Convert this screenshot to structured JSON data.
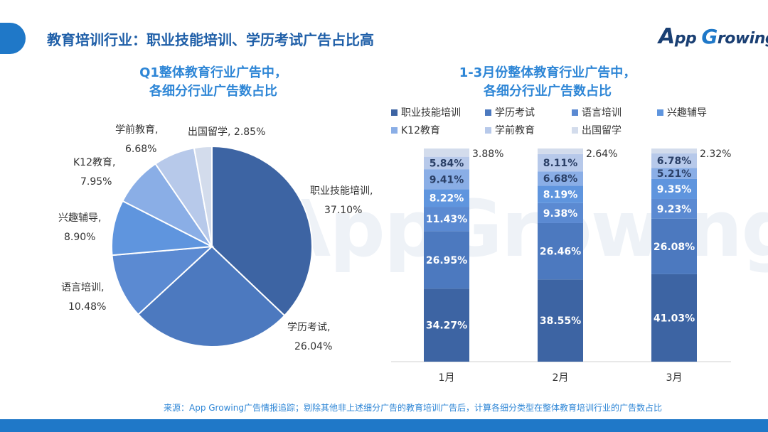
{
  "page": {
    "title": "教育培训行业：职业技能培训、学历考试广告占比高",
    "logo": {
      "prefix": "A",
      "mid": "pp ",
      "g": "G",
      "rest": "rowing"
    },
    "watermark": "AppGrowing",
    "source": "来源：App Growing广告情报追踪；剔除其他非上述细分广告的教育培训广告后，计算各细分类型在整体教育培训行业的广告数占比"
  },
  "colors": {
    "accent": "#1f78c8",
    "title": "#1f5fa8",
    "chart_title": "#2e86d6",
    "series": [
      "#3d64a3",
      "#4c79bf",
      "#5b8ad2",
      "#5f95de",
      "#8aaee6",
      "#b7c9ea",
      "#d3dcec"
    ]
  },
  "chart_data": [
    {
      "type": "pie",
      "title_lines": [
        "Q1整体教育行业广告中，",
        "各细分行业广告数占比"
      ],
      "slices": [
        {
          "name": "职业技能培训",
          "value": 37.1,
          "label": "37.10%"
        },
        {
          "name": "学历考试",
          "value": 26.04,
          "label": "26.04%"
        },
        {
          "name": "语言培训",
          "value": 10.48,
          "label": "10.48%"
        },
        {
          "name": "兴趣辅导",
          "value": 8.9,
          "label": "8.90%"
        },
        {
          "name": "K12教育",
          "value": 7.95,
          "label": "7.95%"
        },
        {
          "name": "学前教育",
          "value": 6.68,
          "label": "6.68%"
        },
        {
          "name": "出国留学",
          "value": 2.85,
          "label": "2.85%"
        }
      ]
    },
    {
      "type": "bar",
      "stacked": true,
      "title_lines": [
        "1-3月份整体教育行业广告中，",
        "各细分行业广告数占比"
      ],
      "categories": [
        "1月",
        "2月",
        "3月"
      ],
      "ylim": [
        0,
        100
      ],
      "legend": [
        "职业技能培训",
        "学历考试",
        "语言培训",
        "兴趣辅导",
        "K12教育",
        "学前教育",
        "出国留学"
      ],
      "series": [
        {
          "name": "职业技能培训",
          "values": [
            34.27,
            38.55,
            41.03
          ],
          "labels": [
            "34.27%",
            "38.55%",
            "41.03%"
          ]
        },
        {
          "name": "学历考试",
          "values": [
            26.95,
            26.46,
            26.08
          ],
          "labels": [
            "26.95%",
            "26.46%",
            "26.08%"
          ]
        },
        {
          "name": "语言培训",
          "values": [
            11.43,
            9.38,
            9.23
          ],
          "labels": [
            "11.43%",
            "9.38%",
            "9.23%"
          ]
        },
        {
          "name": "兴趣辅导",
          "values": [
            8.22,
            8.19,
            9.35
          ],
          "labels": [
            "8.22%",
            "8.19%",
            "9.35%"
          ]
        },
        {
          "name": "K12教育",
          "values": [
            9.41,
            6.68,
            5.21
          ],
          "labels": [
            "9.41%",
            "6.68%",
            "5.21%"
          ]
        },
        {
          "name": "学前教育",
          "values": [
            5.84,
            8.11,
            6.78
          ],
          "labels": [
            "5.84%",
            "8.11%",
            "6.78%"
          ]
        },
        {
          "name": "出国留学",
          "values": [
            3.88,
            2.64,
            2.32
          ],
          "labels": [
            "3.88%",
            "2.64%",
            "2.32%"
          ]
        }
      ]
    }
  ]
}
